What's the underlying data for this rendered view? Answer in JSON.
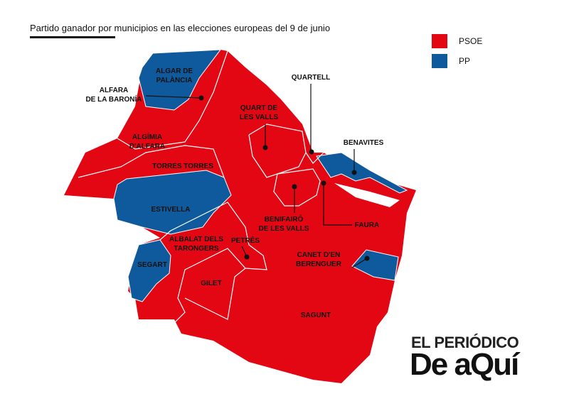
{
  "title": "Partido ganador por municipios en las elecciones europeas del 9 de junio",
  "legend": [
    {
      "label": "PSOE",
      "color": "#e30613"
    },
    {
      "label": "PP",
      "color": "#0f5a9c"
    }
  ],
  "municipalities": [
    {
      "label": [
        "ALGAR DE",
        "PALÀNCIA"
      ]
    },
    {
      "label": [
        "ALFARA",
        "DE LA BARONÍA"
      ]
    },
    {
      "label": [
        "ALGÍMIA",
        "D'ALFARA"
      ]
    },
    {
      "label": [
        "TORRES TORRES"
      ]
    },
    {
      "label": [
        "ESTIVELLA"
      ]
    },
    {
      "label": [
        "ALBALAT DELS",
        "TARONGERS"
      ]
    },
    {
      "label": [
        "SEGART"
      ]
    },
    {
      "label": [
        "PETRÉS"
      ]
    },
    {
      "label": [
        "GILET"
      ]
    },
    {
      "label": [
        "QUART DE",
        "LES VALLS"
      ]
    },
    {
      "label": [
        "QUARTELL"
      ]
    },
    {
      "label": [
        "BENAVITES"
      ]
    },
    {
      "label": [
        "BENIFAIRÓ",
        "DE LES VALLS"
      ]
    },
    {
      "label": [
        "FAURA"
      ]
    },
    {
      "label": [
        "CANET D'EN",
        "BERENGUER"
      ]
    },
    {
      "label": [
        "SAGUNT"
      ]
    }
  ],
  "logo": {
    "top": "EL PERIÓDICO",
    "bottom": "De aQuí"
  }
}
